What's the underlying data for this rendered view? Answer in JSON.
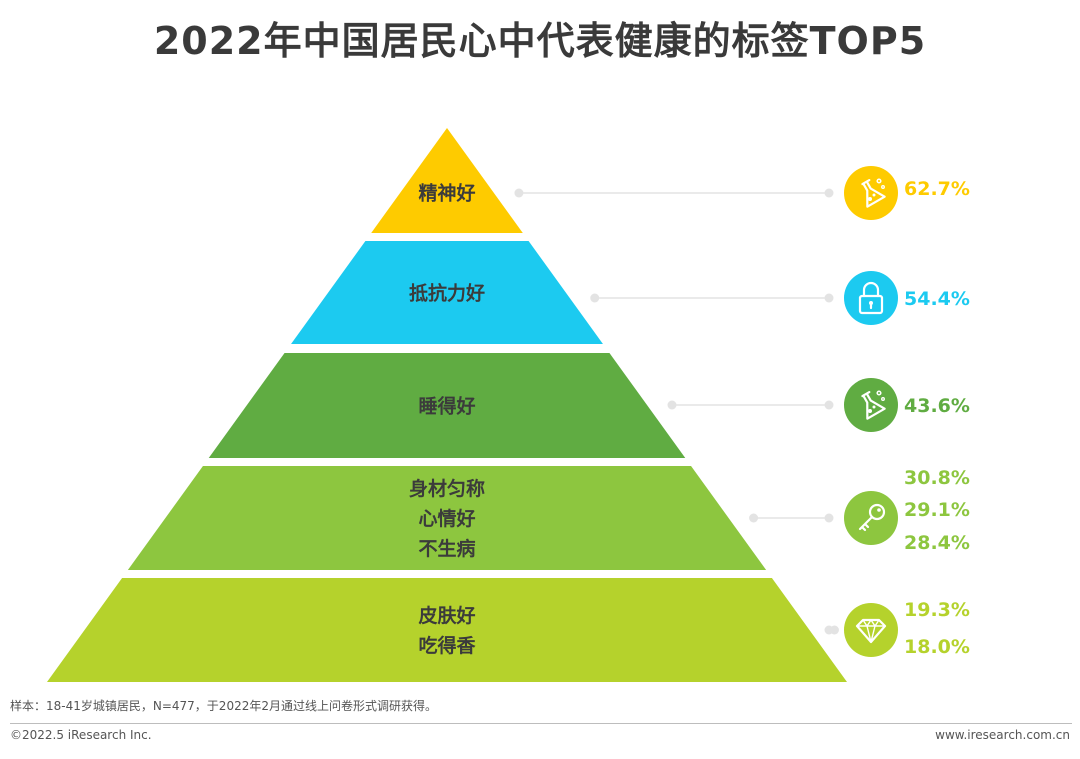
{
  "chart_data": {
    "type": "pyramid",
    "title": "2022年中国居民心中代表健康的标签TOP5",
    "tiers": [
      {
        "labels": [
          "精神好"
        ],
        "values": [
          "62.7%"
        ],
        "icon": "flask-icon",
        "color": "#fecb00"
      },
      {
        "labels": [
          "抵抗力好"
        ],
        "values": [
          "54.4%"
        ],
        "icon": "lock-icon",
        "color": "#1ccaf0"
      },
      {
        "labels": [
          "睡得好"
        ],
        "values": [
          "43.6%"
        ],
        "icon": "flask-icon",
        "color": "#60ac42"
      },
      {
        "labels": [
          "身材匀称",
          "心情好",
          "不生病"
        ],
        "values": [
          "30.8%",
          "29.1%",
          "28.4%"
        ],
        "icon": "key-icon",
        "color": "#8dc63f"
      },
      {
        "labels": [
          "皮肤好",
          "吃得香"
        ],
        "values": [
          "19.3%",
          "18.0%"
        ],
        "icon": "diamond-icon",
        "color": "#b5d22c"
      }
    ]
  },
  "footer": {
    "note": "样本：18-41岁城镇居民，N=477，于2022年2月通过线上问卷形式调研获得。",
    "copyright": "©2022.5 iResearch Inc.",
    "website": "www.iresearch.com.cn"
  }
}
